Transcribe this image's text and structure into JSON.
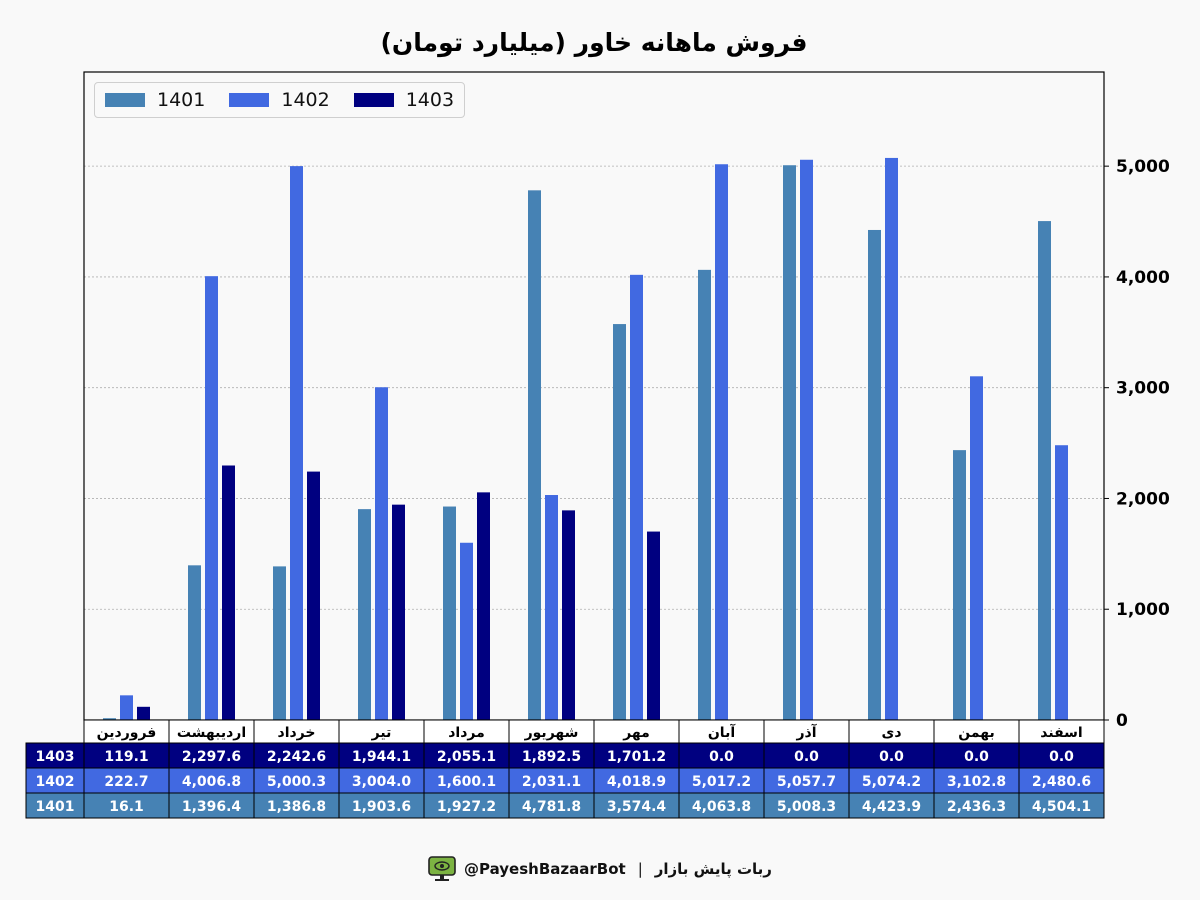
{
  "title": "فروش ماهانه خاور (میلیارد تومان)",
  "footer": {
    "handle": "@PayeshBazaarBot",
    "separator": "|",
    "bot_name": "ربات پایش بازار",
    "icon": "monitor-eye-icon"
  },
  "colors": {
    "1401": "#4682b4",
    "1402": "#4169e1",
    "1403": "#000080",
    "background": "#f9f9f9",
    "grid": "#b0b0b0"
  },
  "chart_data": {
    "type": "bar",
    "title": "فروش ماهانه خاور (میلیارد تومان)",
    "xlabel": "",
    "ylabel": "",
    "ylim": [
      0,
      5850
    ],
    "yticks": [
      0,
      1000,
      2000,
      3000,
      4000,
      5000
    ],
    "ytick_labels": [
      "0",
      "1,000",
      "2,000",
      "3,000",
      "4,000",
      "5,000"
    ],
    "y_axis_side": "right",
    "grid": true,
    "legend_position": "top-left",
    "categories": [
      "فروردین",
      "اردیبهشت",
      "خرداد",
      "تیر",
      "مرداد",
      "شهریور",
      "مهر",
      "آبان",
      "آذر",
      "دی",
      "بهمن",
      "اسفند"
    ],
    "series": [
      {
        "name": "1401",
        "color": "#4682b4",
        "values": [
          16.1,
          1396.4,
          1386.8,
          1903.6,
          1927.2,
          4781.8,
          3574.4,
          4063.8,
          5008.3,
          4423.9,
          2436.3,
          4504.1
        ],
        "labels": [
          "16.1",
          "1,396.4",
          "1,386.8",
          "1,903.6",
          "1,927.2",
          "4,781.8",
          "3,574.4",
          "4,063.8",
          "5,008.3",
          "4,423.9",
          "2,436.3",
          "4,504.1"
        ]
      },
      {
        "name": "1402",
        "color": "#4169e1",
        "values": [
          222.7,
          4006.8,
          5000.3,
          3004.0,
          1600.1,
          2031.1,
          4018.9,
          5017.2,
          5057.7,
          5074.2,
          3102.8,
          2480.6
        ],
        "labels": [
          "222.7",
          "4,006.8",
          "5,000.3",
          "3,004.0",
          "1,600.1",
          "2,031.1",
          "4,018.9",
          "5,017.2",
          "5,057.7",
          "5,074.2",
          "3,102.8",
          "2,480.6"
        ]
      },
      {
        "name": "1403",
        "color": "#000080",
        "values": [
          119.1,
          2297.6,
          2242.6,
          1944.1,
          2055.1,
          1892.5,
          1701.2,
          0.0,
          0.0,
          0.0,
          0.0,
          0.0
        ],
        "labels": [
          "119.1",
          "2,297.6",
          "2,242.6",
          "1,944.1",
          "2,055.1",
          "1,892.5",
          "1,701.2",
          "0.0",
          "0.0",
          "0.0",
          "0.0",
          "0.0"
        ]
      }
    ],
    "table_row_order": [
      "1403",
      "1402",
      "1401"
    ]
  }
}
